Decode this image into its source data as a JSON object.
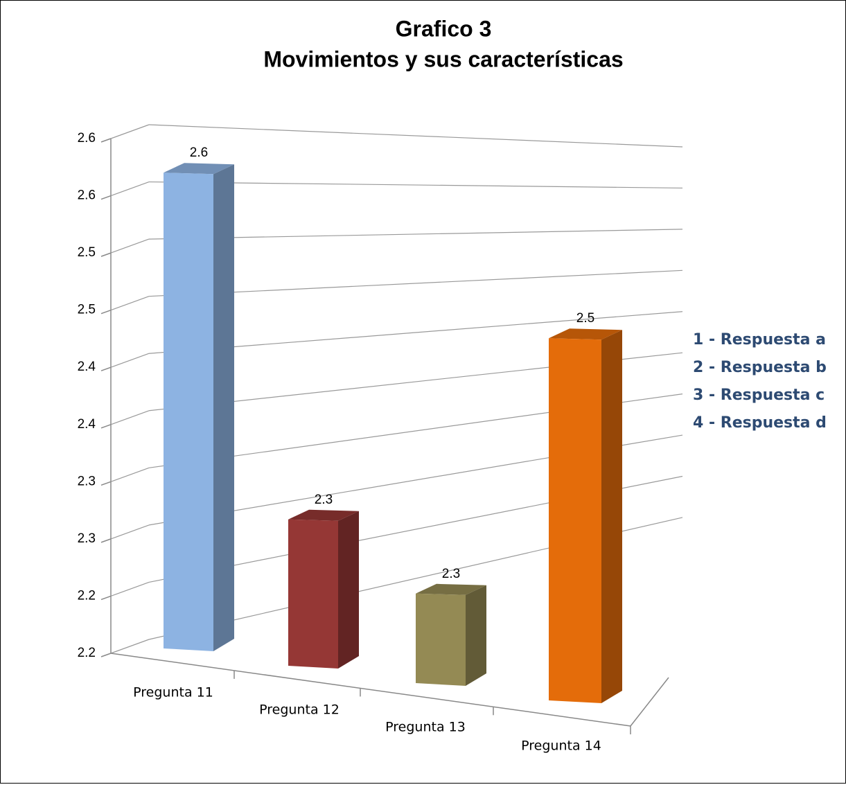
{
  "chart_data": {
    "type": "bar3d",
    "title": "Grafico 3",
    "subtitle": "Movimientos y sus características",
    "categories": [
      "Pregunta 11",
      "Pregunta 12",
      "Pregunta 13",
      "Pregunta 14"
    ],
    "values": [
      2.62,
      2.33,
      2.28,
      2.52
    ],
    "value_labels": [
      "2.6",
      "2.3",
      "2.3",
      "2.5"
    ],
    "colors": [
      "#8db3e2",
      "#953735",
      "#948a54",
      "#e46c0a"
    ],
    "ylim": [
      2.2,
      2.65
    ],
    "yticks": [
      2.2,
      {
        "value": 2.25,
        "label": "2.2"
      },
      2.3,
      {
        "value": 2.35,
        "label": "2.3"
      },
      2.4,
      {
        "value": 2.45,
        "label": "2.4"
      },
      2.5,
      {
        "value": 2.55,
        "label": "2.5"
      },
      2.6,
      {
        "value": 2.65,
        "label": "2.6"
      }
    ],
    "grid": true,
    "annotations": [
      "1 - Respuesta a",
      "2 - Respuesta b",
      "3 - Respuesta c",
      "4 - Respuesta d"
    ]
  }
}
